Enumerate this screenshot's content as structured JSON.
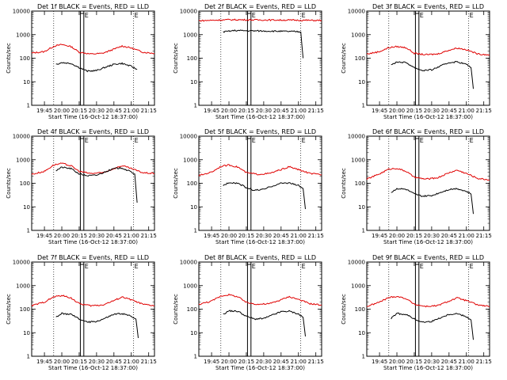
{
  "colors": {
    "events": "#000000",
    "lld": "#e00000",
    "background": "#ffffff"
  },
  "marker_labels": [
    "E",
    "E"
  ],
  "chart_data": [
    {
      "type": "line",
      "title": "Det 1f BLACK = Events, RED = LLD",
      "xlabel": "Start Time (16-Oct-12 18:37:00)",
      "ylabel": "Counts/sec",
      "x_ticks": [
        "19:45",
        "20:00",
        "20:15",
        "20:30",
        "20:45",
        "21:00",
        "21:15"
      ],
      "y_ticks": [
        "1",
        "10",
        "100",
        "1000",
        "10000"
      ],
      "ylim": [
        1,
        10000
      ],
      "yscale": "log",
      "xlim": [
        "19:34",
        "21:20"
      ],
      "dotted_lines": [
        "19:53",
        "21:02"
      ],
      "bracket": [
        "20:16",
        "20:19"
      ],
      "end_markers": [
        "20:19",
        "21:02"
      ],
      "series": [
        {
          "name": "LLD",
          "color": "#e00000",
          "x": [
            "19:34",
            "19:45",
            "19:53",
            "20:00",
            "20:08",
            "20:15",
            "20:25",
            "20:35",
            "20:45",
            "20:52",
            "21:00",
            "21:10",
            "21:20"
          ],
          "values": [
            165,
            190,
            320,
            380,
            310,
            180,
            150,
            160,
            240,
            330,
            270,
            180,
            160
          ]
        },
        {
          "name": "Events",
          "color": "#000000",
          "x": [
            "19:55",
            "20:00",
            "20:08",
            "20:15",
            "20:22",
            "20:30",
            "20:37",
            "20:45",
            "20:52",
            "21:00",
            "21:05"
          ],
          "values": [
            55,
            65,
            60,
            40,
            28,
            30,
            40,
            55,
            60,
            45,
            33
          ]
        }
      ]
    },
    {
      "type": "line",
      "title": "Det 2f BLACK = Events, RED = LLD",
      "xlabel": "Start Time (16-Oct-12 18:37:00)",
      "ylabel": "Counts/sec",
      "x_ticks": [
        "19:45",
        "20:00",
        "20:15",
        "20:30",
        "20:45",
        "21:00",
        "21:15"
      ],
      "y_ticks": [
        "1",
        "10",
        "100",
        "1000",
        "10000"
      ],
      "ylim": [
        1,
        10000
      ],
      "yscale": "log",
      "xlim": [
        "19:34",
        "21:20"
      ],
      "dotted_lines": [
        "19:53",
        "21:02"
      ],
      "bracket": [
        "20:16",
        "20:19"
      ],
      "end_markers": [
        "20:19",
        "21:02"
      ],
      "series": [
        {
          "name": "LLD",
          "color": "#e00000",
          "x": [
            "19:34",
            "20:00",
            "20:30",
            "21:00",
            "21:20"
          ],
          "values": [
            3900,
            4300,
            4200,
            4100,
            4000
          ]
        },
        {
          "name": "Events",
          "color": "#000000",
          "x": [
            "19:55",
            "20:05",
            "20:20",
            "20:40",
            "20:58",
            "21:02",
            "21:04"
          ],
          "values": [
            1300,
            1500,
            1450,
            1400,
            1350,
            1300,
            100
          ]
        }
      ]
    },
    {
      "type": "line",
      "title": "Det 3f BLACK = Events, RED = LLD",
      "xlabel": "Start Time (16-Oct-12 18:37:00)",
      "ylabel": "Counts/sec",
      "x_ticks": [
        "19:45",
        "20:00",
        "20:15",
        "20:30",
        "20:45",
        "21:00",
        "21:15"
      ],
      "y_ticks": [
        "1",
        "10",
        "100",
        "1000",
        "10000"
      ],
      "ylim": [
        1,
        10000
      ],
      "yscale": "log",
      "xlim": [
        "19:34",
        "21:20"
      ],
      "dotted_lines": [
        "19:53",
        "21:02"
      ],
      "bracket": [
        "20:16",
        "20:19"
      ],
      "end_markers": [
        "20:19",
        "21:02"
      ],
      "series": [
        {
          "name": "LLD",
          "color": "#e00000",
          "x": [
            "19:34",
            "19:45",
            "19:53",
            "20:00",
            "20:08",
            "20:15",
            "20:25",
            "20:35",
            "20:45",
            "20:52",
            "21:00",
            "21:10",
            "21:20"
          ],
          "values": [
            150,
            190,
            280,
            310,
            280,
            160,
            140,
            150,
            220,
            270,
            230,
            150,
            140
          ]
        },
        {
          "name": "Events",
          "color": "#000000",
          "x": [
            "19:55",
            "20:00",
            "20:08",
            "20:15",
            "20:22",
            "20:30",
            "20:37",
            "20:45",
            "20:52",
            "21:00",
            "21:04",
            "21:06"
          ],
          "values": [
            50,
            70,
            65,
            40,
            30,
            32,
            45,
            65,
            70,
            55,
            40,
            5
          ]
        }
      ]
    },
    {
      "type": "line",
      "title": "Det 4f BLACK = Events, RED = LLD",
      "xlabel": "Start Time (16-Oct-12 18:37:00)",
      "ylabel": "Counts/sec",
      "x_ticks": [
        "19:45",
        "20:00",
        "20:15",
        "20:30",
        "20:45",
        "21:00",
        "21:15"
      ],
      "y_ticks": [
        "1",
        "10",
        "100",
        "1000",
        "10000"
      ],
      "ylim": [
        1,
        10000
      ],
      "yscale": "log",
      "xlim": [
        "19:34",
        "21:20"
      ],
      "dotted_lines": [
        "19:53",
        "21:02"
      ],
      "bracket": [
        "20:16",
        "20:19"
      ],
      "end_markers": [
        "20:19",
        "21:02"
      ],
      "series": [
        {
          "name": "LLD",
          "color": "#e00000",
          "x": [
            "19:34",
            "19:45",
            "19:53",
            "20:00",
            "20:08",
            "20:15",
            "20:25",
            "20:35",
            "20:45",
            "20:52",
            "21:00",
            "21:10",
            "21:20"
          ],
          "values": [
            240,
            320,
            600,
            700,
            550,
            320,
            260,
            280,
            420,
            560,
            420,
            280,
            260
          ]
        },
        {
          "name": "Events",
          "color": "#000000",
          "x": [
            "19:55",
            "20:00",
            "20:08",
            "20:15",
            "20:22",
            "20:30",
            "20:37",
            "20:45",
            "20:52",
            "21:00",
            "21:03",
            "21:05"
          ],
          "values": [
            350,
            480,
            420,
            250,
            210,
            220,
            300,
            420,
            450,
            300,
            250,
            15
          ]
        }
      ]
    },
    {
      "type": "line",
      "title": "Det 5f BLACK = Events, RED = LLD",
      "xlabel": "Start Time (16-Oct-12 18:37:00)",
      "ylabel": "Counts/sec",
      "x_ticks": [
        "19:45",
        "20:00",
        "20:15",
        "20:30",
        "20:45",
        "21:00",
        "21:15"
      ],
      "y_ticks": [
        "1",
        "10",
        "100",
        "1000",
        "10000"
      ],
      "ylim": [
        1,
        10000
      ],
      "yscale": "log",
      "xlim": [
        "19:34",
        "21:20"
      ],
      "dotted_lines": [
        "19:53",
        "21:02"
      ],
      "bracket": [
        "20:16",
        "20:19"
      ],
      "end_markers": [
        "20:19",
        "21:02"
      ],
      "series": [
        {
          "name": "LLD",
          "color": "#e00000",
          "x": [
            "19:34",
            "19:45",
            "19:53",
            "20:00",
            "20:08",
            "20:15",
            "20:25",
            "20:35",
            "20:45",
            "20:52",
            "21:00",
            "21:10",
            "21:20"
          ],
          "values": [
            210,
            300,
            520,
            600,
            480,
            280,
            240,
            260,
            380,
            500,
            380,
            260,
            230
          ]
        },
        {
          "name": "Events",
          "color": "#000000",
          "x": [
            "19:55",
            "20:00",
            "20:08",
            "20:15",
            "20:22",
            "20:30",
            "20:37",
            "20:45",
            "20:52",
            "21:00",
            "21:04",
            "21:06"
          ],
          "values": [
            80,
            110,
            100,
            65,
            50,
            55,
            75,
            100,
            105,
            80,
            60,
            8
          ]
        }
      ]
    },
    {
      "type": "line",
      "title": "Det 6f BLACK = Events, RED = LLD",
      "xlabel": "Start Time (16-Oct-12 18:37:00)",
      "ylabel": "Counts/sec",
      "x_ticks": [
        "19:45",
        "20:00",
        "20:15",
        "20:30",
        "20:45",
        "21:00",
        "21:15"
      ],
      "y_ticks": [
        "1",
        "10",
        "100",
        "1000",
        "10000"
      ],
      "ylim": [
        1,
        10000
      ],
      "yscale": "log",
      "xlim": [
        "19:34",
        "21:20"
      ],
      "dotted_lines": [
        "19:53",
        "21:02"
      ],
      "bracket": [
        "20:16",
        "20:19"
      ],
      "end_markers": [
        "20:19",
        "21:02"
      ],
      "series": [
        {
          "name": "LLD",
          "color": "#e00000",
          "x": [
            "19:34",
            "19:45",
            "19:53",
            "20:00",
            "20:08",
            "20:15",
            "20:25",
            "20:35",
            "20:45",
            "20:52",
            "21:00",
            "21:10",
            "21:20"
          ],
          "values": [
            150,
            250,
            400,
            430,
            320,
            180,
            150,
            170,
            280,
            360,
            260,
            160,
            140
          ]
        },
        {
          "name": "Events",
          "color": "#000000",
          "x": [
            "19:55",
            "20:00",
            "20:08",
            "20:15",
            "20:22",
            "20:30",
            "20:37",
            "20:45",
            "20:52",
            "21:00",
            "21:04",
            "21:06"
          ],
          "values": [
            40,
            60,
            55,
            35,
            28,
            30,
            40,
            55,
            60,
            45,
            35,
            5
          ]
        }
      ]
    },
    {
      "type": "line",
      "title": "Det 7f BLACK = Events, RED = LLD",
      "xlabel": "Start Time (16-Oct-12 18:37:00)",
      "ylabel": "Counts/sec",
      "x_ticks": [
        "19:45",
        "20:00",
        "20:15",
        "20:30",
        "20:45",
        "21:00",
        "21:15"
      ],
      "y_ticks": [
        "1",
        "10",
        "100",
        "1000",
        "10000"
      ],
      "ylim": [
        1,
        10000
      ],
      "yscale": "log",
      "xlim": [
        "19:34",
        "21:20"
      ],
      "dotted_lines": [
        "19:53",
        "21:02"
      ],
      "bracket": [
        "20:16",
        "20:19"
      ],
      "end_markers": [
        "20:19",
        "21:02"
      ],
      "series": [
        {
          "name": "LLD",
          "color": "#e00000",
          "x": [
            "19:34",
            "19:45",
            "19:53",
            "20:00",
            "20:08",
            "20:15",
            "20:25",
            "20:35",
            "20:45",
            "20:52",
            "21:00",
            "21:10",
            "21:20"
          ],
          "values": [
            140,
            200,
            330,
            380,
            300,
            170,
            140,
            150,
            230,
            330,
            250,
            160,
            140
          ]
        },
        {
          "name": "Events",
          "color": "#000000",
          "x": [
            "19:55",
            "20:00",
            "20:08",
            "20:15",
            "20:22",
            "20:30",
            "20:37",
            "20:45",
            "20:52",
            "21:00",
            "21:04",
            "21:06"
          ],
          "values": [
            45,
            65,
            60,
            38,
            28,
            30,
            40,
            60,
            65,
            50,
            38,
            6
          ]
        }
      ]
    },
    {
      "type": "line",
      "title": "Det 8f BLACK = Events, RED = LLD",
      "xlabel": "Start Time (16-Oct-12 18:37:00)",
      "ylabel": "Counts/sec",
      "x_ticks": [
        "19:45",
        "20:00",
        "20:15",
        "20:30",
        "20:45",
        "21:00",
        "21:15"
      ],
      "y_ticks": [
        "1",
        "10",
        "100",
        "1000",
        "10000"
      ],
      "ylim": [
        1,
        10000
      ],
      "yscale": "log",
      "xlim": [
        "19:34",
        "21:20"
      ],
      "dotted_lines": [
        "19:53",
        "21:02"
      ],
      "bracket": [
        "20:16",
        "20:19"
      ],
      "end_markers": [
        "20:19",
        "21:02"
      ],
      "series": [
        {
          "name": "LLD",
          "color": "#e00000",
          "x": [
            "19:34",
            "19:45",
            "19:53",
            "20:00",
            "20:08",
            "20:15",
            "20:25",
            "20:35",
            "20:45",
            "20:52",
            "21:00",
            "21:10",
            "21:20"
          ],
          "values": [
            160,
            220,
            360,
            410,
            330,
            190,
            160,
            170,
            250,
            340,
            260,
            170,
            150
          ]
        },
        {
          "name": "Events",
          "color": "#000000",
          "x": [
            "19:55",
            "20:00",
            "20:08",
            "20:15",
            "20:22",
            "20:30",
            "20:37",
            "20:45",
            "20:52",
            "21:00",
            "21:04",
            "21:06"
          ],
          "values": [
            60,
            85,
            80,
            50,
            38,
            40,
            55,
            78,
            82,
            62,
            45,
            7
          ]
        }
      ]
    },
    {
      "type": "line",
      "title": "Det 9f BLACK = Events, RED = LLD",
      "xlabel": "Start Time (16-Oct-12 18:37:00)",
      "ylabel": "Counts/sec",
      "x_ticks": [
        "19:45",
        "20:00",
        "20:15",
        "20:30",
        "20:45",
        "21:00",
        "21:15"
      ],
      "y_ticks": [
        "1",
        "10",
        "100",
        "1000",
        "10000"
      ],
      "ylim": [
        1,
        10000
      ],
      "yscale": "log",
      "xlim": [
        "19:34",
        "21:20"
      ],
      "dotted_lines": [
        "19:53",
        "21:02"
      ],
      "bracket": [
        "20:16",
        "20:19"
      ],
      "end_markers": [
        "20:19",
        "21:02"
      ],
      "series": [
        {
          "name": "LLD",
          "color": "#e00000",
          "x": [
            "19:34",
            "19:45",
            "19:53",
            "20:00",
            "20:08",
            "20:15",
            "20:25",
            "20:35",
            "20:45",
            "20:52",
            "21:00",
            "21:10",
            "21:20"
          ],
          "values": [
            130,
            200,
            310,
            350,
            280,
            160,
            130,
            140,
            220,
            300,
            230,
            150,
            130
          ]
        },
        {
          "name": "Events",
          "color": "#000000",
          "x": [
            "19:55",
            "20:00",
            "20:08",
            "20:15",
            "20:22",
            "20:30",
            "20:37",
            "20:45",
            "20:52",
            "21:00",
            "21:04",
            "21:06"
          ],
          "values": [
            40,
            65,
            60,
            38,
            28,
            30,
            42,
            60,
            65,
            48,
            35,
            5
          ]
        }
      ]
    }
  ]
}
